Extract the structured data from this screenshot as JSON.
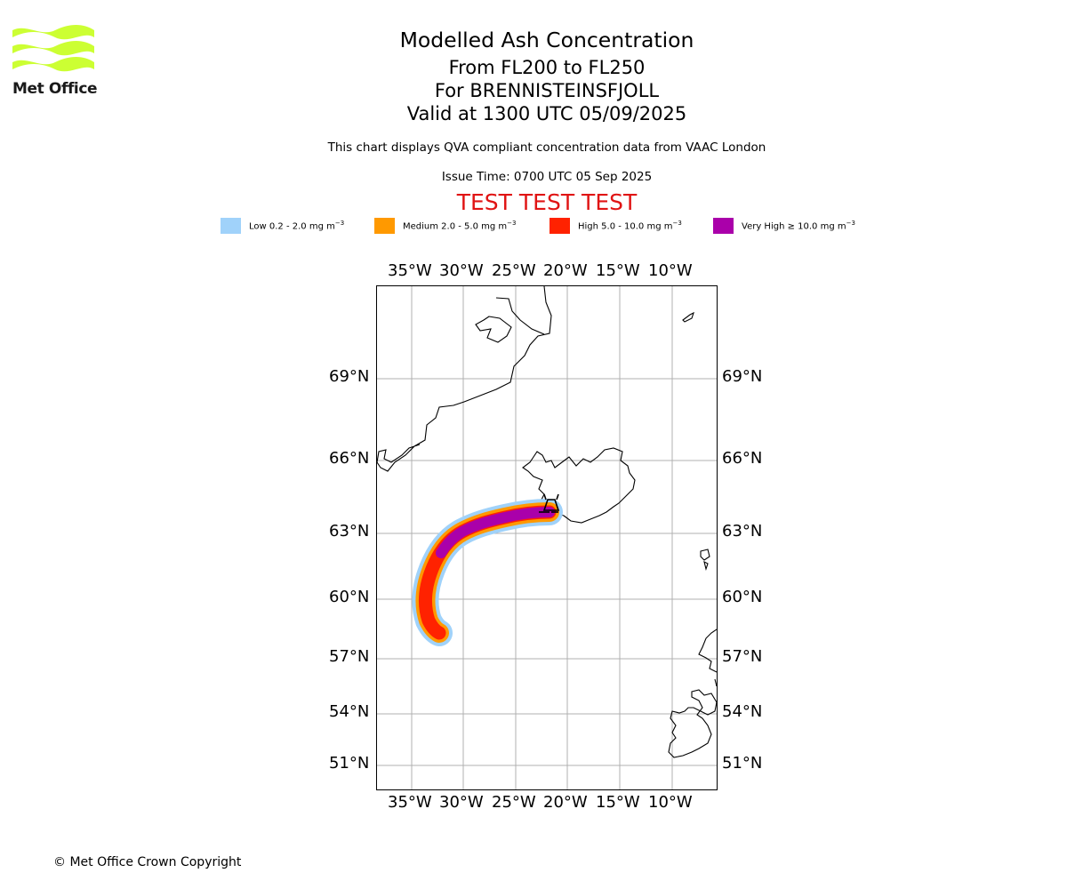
{
  "logo": {
    "text": "Met Office",
    "color": "#ccff33"
  },
  "header": {
    "title": "Modelled Ash Concentration",
    "levels": "From FL200 to FL250",
    "volcano": "For BRENNISTEINSFJOLL",
    "valid": "Valid at 1300 UTC 05/09/2025",
    "description": "This chart displays QVA compliant concentration data from VAAC London",
    "issue_time": "Issue Time: 0700 UTC 05 Sep 2025",
    "test_banner": "TEST TEST TEST"
  },
  "legend": [
    {
      "label": "Low 0.2 - 2.0 mg m",
      "exp": "−3",
      "color": "#a0d2fa"
    },
    {
      "label": "Medium 2.0 - 5.0 mg m",
      "exp": "−3",
      "color": "#ff9900"
    },
    {
      "label": "High 5.0 - 10.0 mg m",
      "exp": "−3",
      "color": "#ff2200"
    },
    {
      "label": "Very High  ≥  10.0 mg m",
      "exp": "−3",
      "color": "#aa00aa"
    }
  ],
  "map": {
    "lon_ticks": [
      "35°W",
      "30°W",
      "25°W",
      "20°W",
      "15°W",
      "10°W"
    ],
    "lat_ticks": [
      "69°N",
      "66°N",
      "63°N",
      "60°N",
      "57°N",
      "54°N",
      "51°N"
    ],
    "grid": true,
    "gridline_color": "#b0b0b0"
  },
  "footer": {
    "copyright": "© Met Office Crown Copyright"
  }
}
